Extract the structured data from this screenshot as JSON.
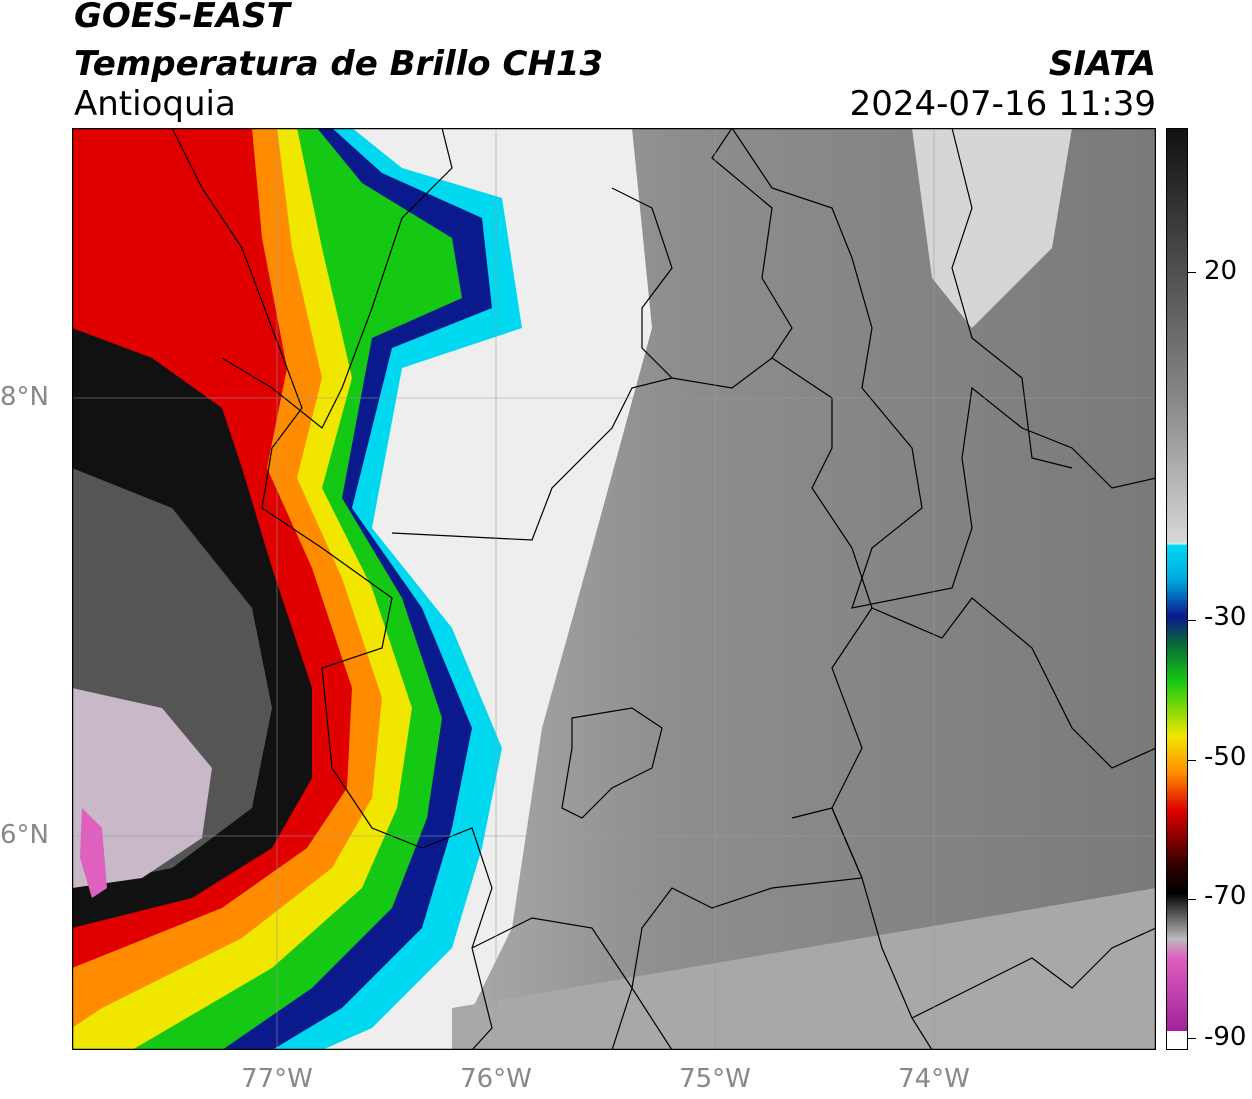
{
  "header": {
    "satellite": "GOES-EAST",
    "product": "Temperatura de Brillo CH13",
    "region": "Antioquia",
    "organization": "SIATA",
    "timestamp": "2024-07-16 11:39"
  },
  "map": {
    "lat_labels": [
      "8°N",
      "6°N"
    ],
    "lon_labels": [
      "77°W",
      "76°W",
      "75°W",
      "74°W"
    ]
  },
  "colorbar": {
    "tick_labels": [
      "20",
      "-30",
      "-50",
      "-70",
      "-90"
    ],
    "colors": {
      "warm_gray_top": "#111111",
      "light_band": "#f2f2f2",
      "cyan": "#00d8f0",
      "navy": "#0a1a8c",
      "green": "#14c814",
      "yellow": "#f0e600",
      "orange": "#ff8c00",
      "red": "#e00000",
      "black": "#000000",
      "pink": "#e060c0",
      "purple": "#a0209a"
    }
  }
}
